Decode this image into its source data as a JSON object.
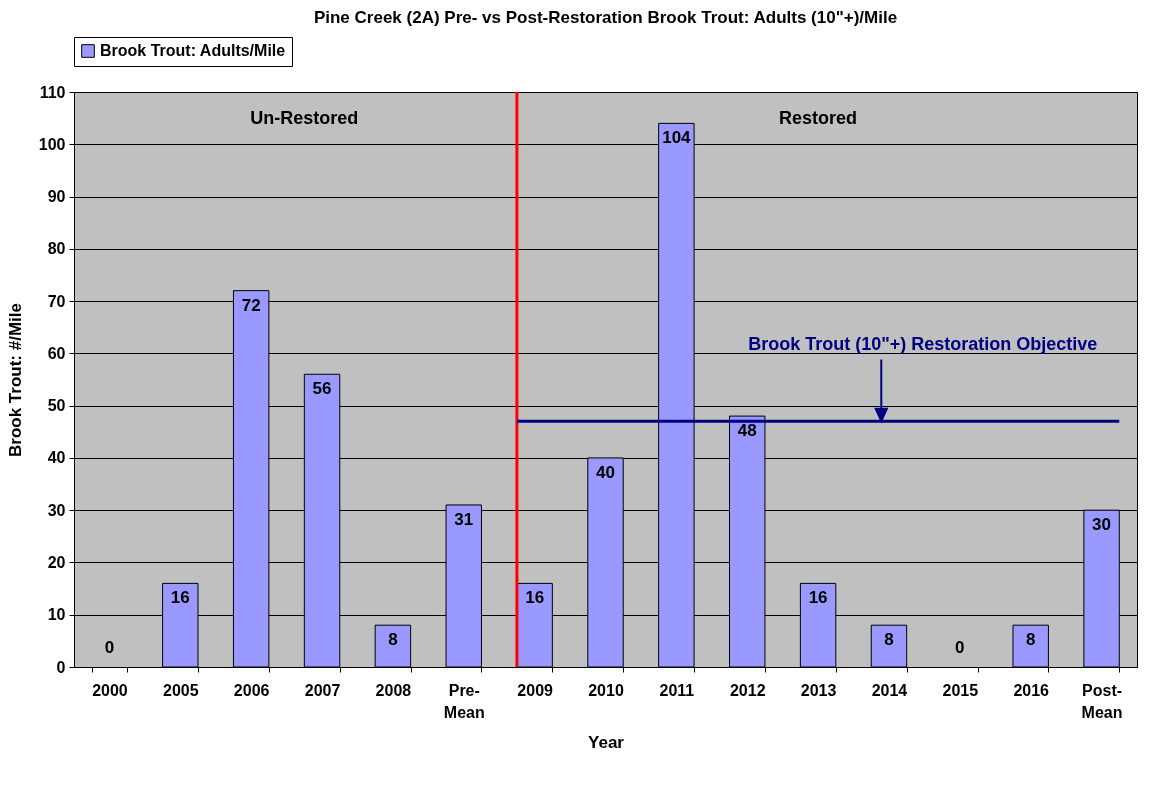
{
  "chart_data": {
    "type": "bar",
    "title": "Pine Creek (2A) Pre- vs Post-Restoration Brook Trout: Adults (10\"+)/Mile",
    "xlabel": "Year",
    "ylabel": "Brook Trout: #/Mile",
    "categories": [
      "2000",
      "2005",
      "2006",
      "2007",
      "2008",
      "Pre-\nMean",
      "2009",
      "2010",
      "2011",
      "2012",
      "2013",
      "2014",
      "2015",
      "2016",
      "Post-\nMean"
    ],
    "series": [
      {
        "name": "Brook Trout: Adults/Mile",
        "color": "#9999ff",
        "values": [
          0,
          16,
          72,
          56,
          8,
          31,
          16,
          40,
          104,
          48,
          16,
          8,
          0,
          8,
          30
        ]
      }
    ],
    "ylim": [
      0,
      110
    ],
    "yticks": [
      0,
      10,
      20,
      30,
      40,
      50,
      60,
      70,
      80,
      90,
      100,
      110
    ],
    "grid": "y",
    "legend": "top",
    "data_labels": true,
    "ref_lines": [
      {
        "axis": "x",
        "value": "2009",
        "color": "#ff0000"
      },
      {
        "axis": "y",
        "value": 47,
        "label": "Brook Trout (10\"+) Restoration Objective",
        "color": "#000080"
      }
    ],
    "annotations": [
      "Un-Restored",
      "Restored"
    ]
  }
}
